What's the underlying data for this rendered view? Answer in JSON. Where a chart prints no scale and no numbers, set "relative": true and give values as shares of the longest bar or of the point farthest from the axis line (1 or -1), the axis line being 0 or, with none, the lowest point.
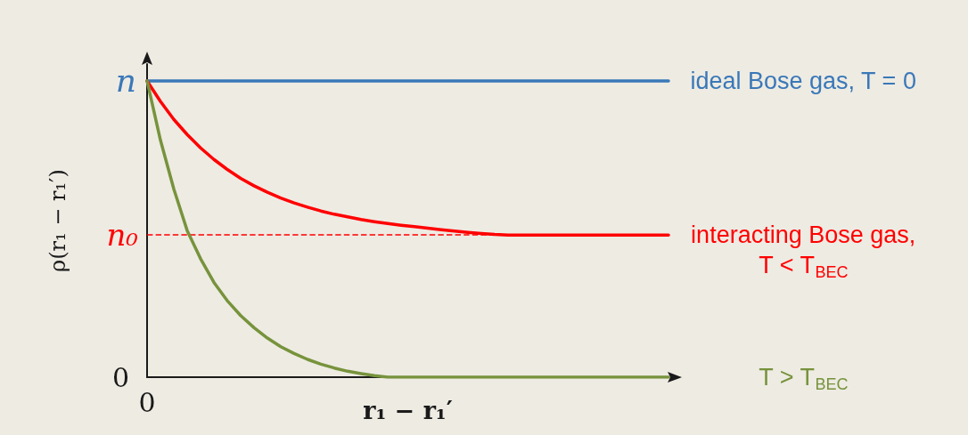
{
  "chart_data": {
    "type": "line",
    "relative": true,
    "xlabel": "r₁ − r₁′",
    "ylabel": "ρ(r₁ − r₁′)",
    "categories": [
      null,
      null,
      null,
      null,
      null,
      null,
      null,
      null,
      null,
      null,
      null,
      null,
      null,
      null,
      null,
      null,
      null,
      null,
      null,
      null,
      null,
      null,
      null,
      null,
      null,
      null,
      null,
      null,
      null,
      null,
      null,
      null,
      null,
      null,
      null,
      null,
      null,
      null,
      null,
      null
    ],
    "series": [
      {
        "name": "ideal Bose gas, T = 0",
        "color": "#3a78b8",
        "values": [
          1,
          1,
          1,
          1,
          1,
          1,
          1,
          1,
          1,
          1,
          1,
          1,
          1,
          1,
          1,
          1,
          1,
          1,
          1,
          1,
          1,
          1,
          1,
          1,
          1,
          1,
          1,
          1,
          1,
          1,
          1,
          1,
          1,
          1,
          1,
          1,
          1,
          1,
          1,
          1
        ]
      },
      {
        "name": "interacting Bose gas,\nT < T$_{BEC}$",
        "color": "#ff0000",
        "values": [
          1,
          0.931,
          0.87,
          0.819,
          0.774,
          0.735,
          0.701,
          0.671,
          0.646,
          0.624,
          0.605,
          0.588,
          0.574,
          0.561,
          0.55,
          0.541,
          0.532,
          0.525,
          0.519,
          0.513,
          0.508,
          0.503,
          0.498,
          0.493,
          0.489,
          0.485,
          0.482,
          0.48,
          0.48,
          0.48,
          0.48,
          0.48,
          0.48,
          0.48,
          0.48,
          0.48,
          0.48,
          0.48,
          0.48,
          0.48
        ]
      },
      {
        "name": "T > T$_{BEC}$",
        "color": "#77933c",
        "values": [
          1,
          0.8,
          0.635,
          0.495,
          0.4,
          0.32,
          0.258,
          0.208,
          0.167,
          0.132,
          0.103,
          0.08,
          0.06,
          0.044,
          0.031,
          0.02,
          0.012,
          0.005,
          0,
          0,
          0,
          0,
          0,
          0,
          0,
          0,
          0,
          0,
          0,
          0,
          0,
          0,
          0,
          0,
          0,
          0,
          0,
          0,
          0,
          0
        ]
      }
    ],
    "ref_lines": [
      {
        "axis": "y",
        "value": 0.48,
        "label": "n₀",
        "color": "#ff0000",
        "line_style": "dashed"
      }
    ],
    "annotations": [
      "n",
      "0",
      "0"
    ]
  }
}
